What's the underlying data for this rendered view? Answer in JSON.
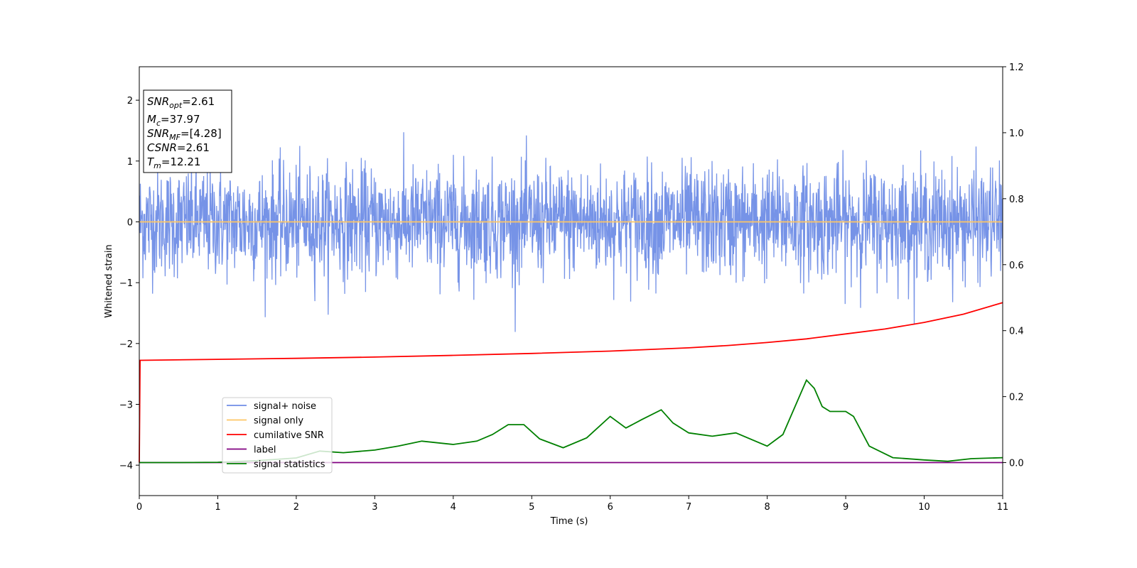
{
  "chart_data": {
    "type": "line",
    "xlabel": "Time (s)",
    "ylabel": "Whitened strain",
    "xlim": [
      0,
      11
    ],
    "ylim_left": [
      -4.5,
      2.55
    ],
    "ylim_right": [
      -0.1,
      1.2
    ],
    "x_ticks": [
      "0",
      "1",
      "2",
      "3",
      "4",
      "5",
      "6",
      "7",
      "8",
      "9",
      "10",
      "11"
    ],
    "y_ticks_left": [
      "2",
      "1",
      "0",
      "−1",
      "−2",
      "−3",
      "−4"
    ],
    "y_ticks_right": [
      "1.2",
      "1.0",
      "0.8",
      "0.6",
      "0.4",
      "0.2",
      "0.0"
    ],
    "info_box": {
      "snr_opt": {
        "sym": "SNR",
        "sub": "opt",
        "val": "=2.61"
      },
      "mc": {
        "sym": "M",
        "sub": "c",
        "val": "=37.97"
      },
      "snr_mf": {
        "sym": "SNR",
        "sub": "MF",
        "val": "=[4.28]"
      },
      "csnr": {
        "sym": "CSNR",
        "val": "=2.61"
      },
      "tm": {
        "sym": "T",
        "sub": "m",
        "val": "=12.21"
      }
    },
    "legend": {
      "placement": "lower-left",
      "entries": [
        {
          "label": "signal+ noise",
          "color": "#6f8de6"
        },
        {
          "label": "signal only",
          "color": "#fec664"
        },
        {
          "label": "cumilative SNR",
          "color": "#ff0000"
        },
        {
          "label": "label",
          "color": "#800080"
        },
        {
          "label": "signal statistics",
          "color": "#008000"
        }
      ]
    },
    "series": [
      {
        "name": "signal+ noise",
        "axis": "left",
        "color": "#6f8de6",
        "description_stats": {
          "mean": 0,
          "std": 0.45,
          "min": -2.15,
          "max": 2.25
        }
      },
      {
        "name": "signal only",
        "axis": "left",
        "color": "#fec664",
        "x": [
          0,
          11
        ],
        "y": [
          0,
          0
        ]
      },
      {
        "name": "cumilative SNR",
        "axis": "right",
        "color": "#ff0000",
        "x": [
          0,
          0.01,
          1,
          2,
          3,
          4,
          5,
          6,
          7,
          7.5,
          8,
          8.5,
          9,
          9.5,
          10,
          10.5,
          11
        ],
        "y": [
          0.0,
          0.31,
          0.313,
          0.316,
          0.32,
          0.325,
          0.331,
          0.338,
          0.348,
          0.355,
          0.364,
          0.375,
          0.39,
          0.405,
          0.425,
          0.45,
          0.485
        ]
      },
      {
        "name": "label",
        "axis": "right",
        "color": "#800080",
        "x": [
          0,
          11
        ],
        "y": [
          0,
          0
        ]
      },
      {
        "name": "signal statistics",
        "axis": "right",
        "color": "#008000",
        "x": [
          0,
          0.5,
          1,
          1.5,
          2,
          2.3,
          2.6,
          3,
          3.3,
          3.6,
          4,
          4.3,
          4.5,
          4.7,
          4.9,
          5.1,
          5.4,
          5.7,
          6.0,
          6.2,
          6.4,
          6.65,
          6.8,
          7.0,
          7.3,
          7.6,
          8.0,
          8.2,
          8.5,
          8.6,
          8.7,
          8.8,
          9.0,
          9.1,
          9.3,
          9.6,
          10,
          10.3,
          10.6,
          11
        ],
        "y": [
          0.0,
          0.0,
          0.001,
          0.006,
          0.014,
          0.035,
          0.03,
          0.038,
          0.05,
          0.065,
          0.055,
          0.065,
          0.085,
          0.115,
          0.115,
          0.072,
          0.045,
          0.075,
          0.14,
          0.105,
          0.13,
          0.16,
          0.12,
          0.09,
          0.08,
          0.09,
          0.05,
          0.085,
          0.25,
          0.225,
          0.17,
          0.155,
          0.155,
          0.14,
          0.05,
          0.015,
          0.008,
          0.004,
          0.012,
          0.015
        ]
      }
    ]
  }
}
